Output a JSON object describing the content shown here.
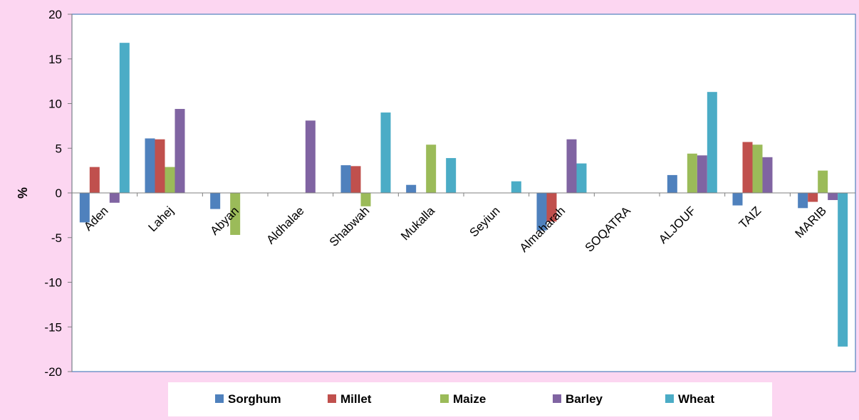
{
  "chart_data": {
    "type": "bar",
    "title": "",
    "xlabel": "",
    "ylabel": "%",
    "ylim": [
      -20,
      20
    ],
    "yticks": [
      20,
      15,
      10,
      5,
      0,
      -5,
      -10,
      -15,
      -20
    ],
    "grid": false,
    "legend_position": "bottom",
    "categories": [
      "Aden",
      "Lahej",
      "Abyan",
      "Aldhalae",
      "Shabwah",
      "Mukalla",
      "Seyiun",
      "Almaharah",
      "SOQATRA",
      "ALJOUF",
      "TAIZ",
      "MARIB"
    ],
    "series": [
      {
        "name": "Sorghum",
        "color": "#4f81bd",
        "values": [
          -3.3,
          6.1,
          -1.8,
          0,
          3.1,
          0.9,
          0,
          -4.2,
          0,
          2.0,
          -1.4,
          -1.7
        ]
      },
      {
        "name": "Millet",
        "color": "#c0504d",
        "values": [
          2.9,
          6.0,
          0,
          0,
          3.0,
          0,
          0,
          -3.2,
          0,
          0,
          5.7,
          -1.0
        ]
      },
      {
        "name": "Maize",
        "color": "#9bbb59",
        "values": [
          0,
          2.9,
          -4.7,
          0,
          -1.5,
          5.4,
          0,
          0,
          0,
          4.4,
          5.4,
          2.5
        ]
      },
      {
        "name": "Barley",
        "color": "#8064a2",
        "values": [
          -1.1,
          9.4,
          0,
          8.1,
          0,
          0,
          0,
          6.0,
          0,
          4.2,
          4.0,
          -0.8
        ]
      },
      {
        "name": "Wheat",
        "color": "#4bacc6",
        "values": [
          16.8,
          0,
          0,
          0,
          9.0,
          3.9,
          1.3,
          3.3,
          0,
          11.3,
          0,
          -17.2
        ]
      }
    ]
  }
}
